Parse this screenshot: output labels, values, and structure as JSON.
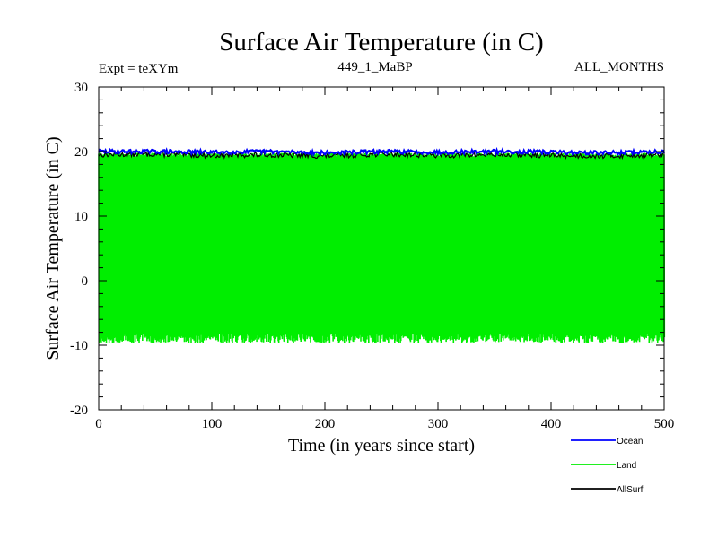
{
  "header": {
    "title": "Surface Air Temperature (in C)",
    "expt": "Expt = teXYm",
    "run_id": "449_1_MaBP",
    "months": "ALL_MONTHS"
  },
  "colors": {
    "ocean": "#0000ff",
    "land": "#00ee00",
    "allsurf": "#000000"
  },
  "chart_data": {
    "type": "line",
    "title": "Surface Air Temperature (in C)",
    "xlabel": "Time (in years since start)",
    "ylabel": "Surface Air Temperature (in C)",
    "xlim": [
      0,
      500
    ],
    "ylim": [
      -20,
      30
    ],
    "x_ticks": [
      0,
      100,
      200,
      300,
      400,
      500
    ],
    "y_ticks": [
      -20,
      -10,
      0,
      10,
      20,
      30
    ],
    "grid": false,
    "legend_placement": "bottom-right, below plot",
    "series": [
      {
        "name": "Ocean",
        "color": "#0000ff",
        "x": [
          0,
          50,
          100,
          150,
          200,
          250,
          300,
          350,
          400,
          450,
          500
        ],
        "values": [
          20.0,
          20.0,
          19.9,
          20.0,
          19.8,
          20.0,
          19.9,
          20.0,
          19.9,
          19.8,
          20.0
        ]
      },
      {
        "name": "Land",
        "color": "#00ee00",
        "x": [
          0,
          500
        ],
        "seasonal_max": [
          19.8,
          19.8
        ],
        "seasonal_min": [
          -8.5,
          -8.5
        ],
        "values": [
          5.5,
          5.5
        ]
      },
      {
        "name": "AllSurf",
        "color": "#000000",
        "x": [
          0,
          50,
          100,
          150,
          200,
          250,
          300,
          350,
          400,
          450,
          500
        ],
        "values": [
          19.5,
          19.6,
          19.4,
          19.5,
          19.3,
          19.6,
          19.4,
          19.5,
          19.4,
          19.3,
          19.5
        ]
      }
    ]
  }
}
